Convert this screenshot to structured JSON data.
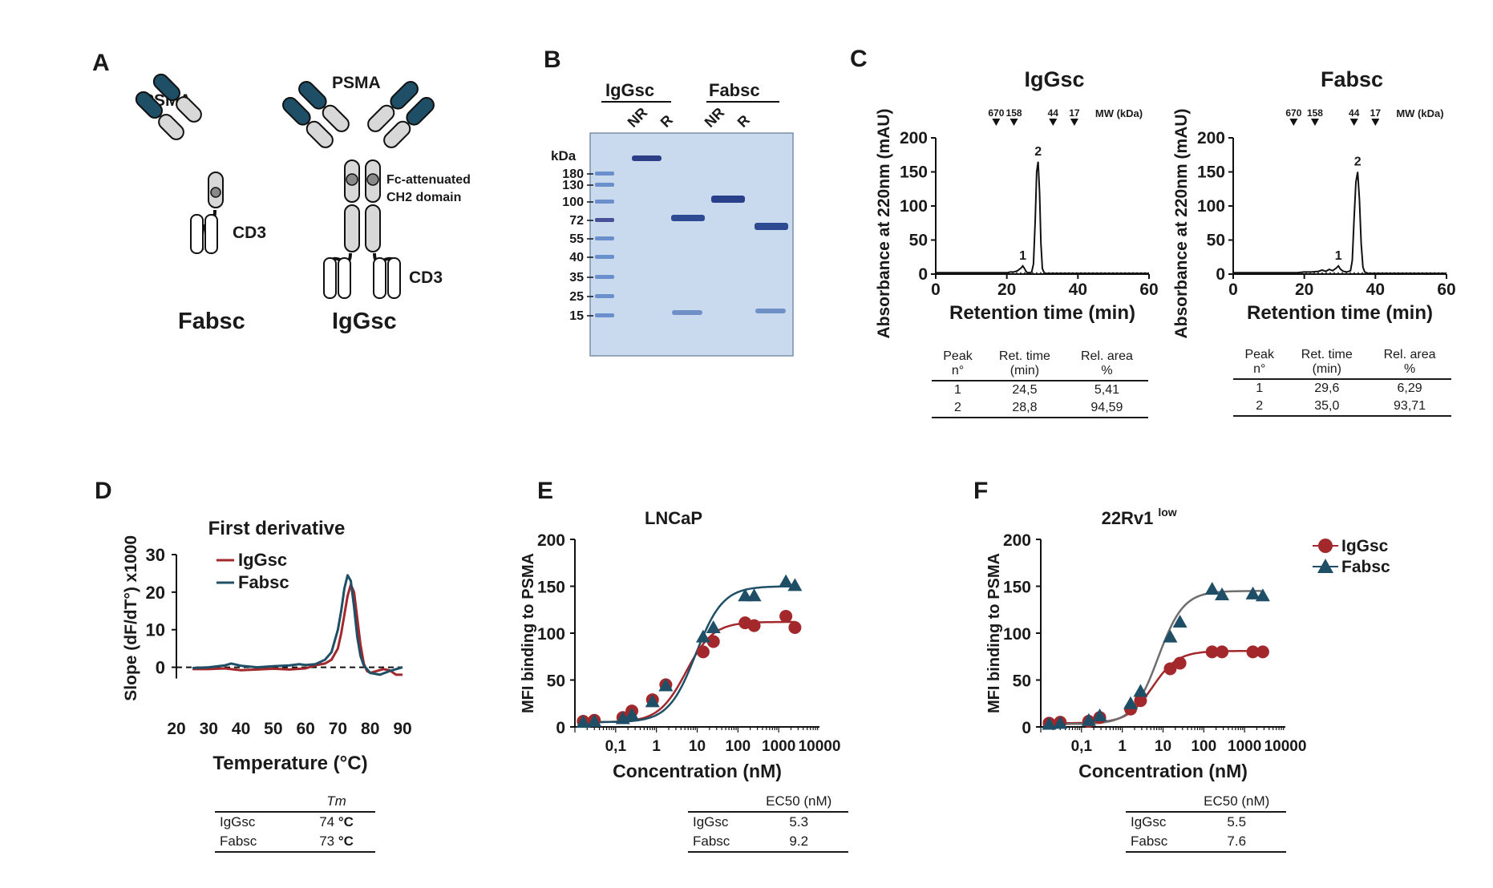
{
  "panel_labels": {
    "a": "A",
    "b": "B",
    "c": "C",
    "d": "D",
    "e": "E",
    "f": "F"
  },
  "colors": {
    "igg": "#a3282c",
    "fab": "#1e4f66",
    "fab_curve_f": "#6e6e6e",
    "gel": "#c6d8ee",
    "light_chain": "#d8d8d8",
    "variable": "#1e4f66"
  },
  "panel_a": {
    "fabsc": {
      "target": "PSMA",
      "effector": "CD3",
      "name": "Fabsc"
    },
    "iggsc": {
      "target": "PSMA",
      "effector": "CD3",
      "name": "IgGsc",
      "note_line1": "Fc-attenuated",
      "note_line2": "CH2 domain"
    }
  },
  "panel_b": {
    "group_labels": [
      "IgGsc",
      "Fabsc"
    ],
    "lane_labels": [
      "NR",
      "R",
      "NR",
      "R"
    ],
    "unit": "kDa",
    "markers": [
      "180",
      "130",
      "100",
      "72",
      "55",
      "40",
      "35",
      "25",
      "15"
    ]
  },
  "panel_c": {
    "mw_markers": [
      "670",
      "158",
      "44",
      "17"
    ],
    "mw_unit": "MW (kDa)",
    "table_headers": {
      "peak_1": "Peak",
      "peak_2": "n°",
      "rt_1": "Ret. time",
      "rt_2": "(min)",
      "area_1": "Rel. area",
      "area_2": "%"
    },
    "left_table": [
      {
        "peak": "1",
        "rt": "24,5",
        "area": "5,41"
      },
      {
        "peak": "2",
        "rt": "28,8",
        "area": "94,59"
      }
    ],
    "right_table": [
      {
        "peak": "1",
        "rt": "29,6",
        "area": "6,29"
      },
      {
        "peak": "2",
        "rt": "35,0",
        "area": "93,71"
      }
    ]
  },
  "panel_d": {
    "table_header": "Tm",
    "rows": [
      {
        "name": "IgGsc",
        "value": "74",
        "unit": "°C"
      },
      {
        "name": "Fabsc",
        "value": "73",
        "unit": "°C"
      }
    ]
  },
  "panel_e": {
    "table_header": "EC50  (nM)",
    "rows": [
      {
        "name": "IgGsc",
        "value": "5.3"
      },
      {
        "name": "Fabsc",
        "value": "9.2"
      }
    ]
  },
  "panel_f": {
    "title_main": "22Rv1",
    "title_sup": "low",
    "legend": [
      "IgGsc",
      "Fabsc"
    ],
    "table_header": "EC50  (nM)",
    "rows": [
      {
        "name": "IgGsc",
        "value": "5.5"
      },
      {
        "name": "Fabsc",
        "value": "7.6"
      }
    ]
  },
  "chart_data": [
    {
      "id": "c-left",
      "type": "line",
      "title": "IgGsc",
      "xlabel": "Retention time  (min)",
      "ylabel": "Absorbance at 220nm (mAU)",
      "xlim": [
        0,
        60
      ],
      "ylim": [
        0,
        200
      ],
      "xticks": [
        "0",
        "20",
        "40",
        "60"
      ],
      "yticks": [
        "0",
        "50",
        "100",
        "150",
        "200"
      ],
      "mw_positions": [
        17,
        22,
        33,
        39
      ],
      "peaks": [
        {
          "label": "1",
          "x": 24.5,
          "y": 12
        },
        {
          "label": "2",
          "x": 28.8,
          "y": 165
        }
      ],
      "x": [
        0,
        10,
        18,
        20,
        21,
        22,
        23,
        24,
        24.5,
        25,
        25.5,
        26,
        26.5,
        27,
        27.5,
        28,
        28.4,
        28.8,
        29.2,
        29.6,
        30,
        30.5,
        31,
        33,
        40,
        50,
        60
      ],
      "y": [
        2,
        2,
        2,
        2,
        3,
        3,
        5,
        9,
        12,
        8,
        3,
        2,
        2,
        3,
        15,
        80,
        150,
        165,
        120,
        45,
        8,
        2,
        1,
        1,
        1,
        1,
        1
      ]
    },
    {
      "id": "c-right",
      "type": "line",
      "title": "Fabsc",
      "xlabel": "Retention time  (min)",
      "ylabel": "Absorbance at 220nm (mAU)",
      "xlim": [
        0,
        60
      ],
      "ylim": [
        0,
        200
      ],
      "xticks": [
        "0",
        "20",
        "40",
        "60"
      ],
      "yticks": [
        "0",
        "50",
        "100",
        "150",
        "200"
      ],
      "mw_positions": [
        17,
        23,
        34,
        40
      ],
      "peaks": [
        {
          "label": "1",
          "x": 29.6,
          "y": 12
        },
        {
          "label": "2",
          "x": 35.0,
          "y": 150
        }
      ],
      "x": [
        0,
        10,
        18,
        20,
        22,
        24,
        25,
        26,
        27,
        28,
        29,
        29.6,
        30.2,
        31,
        32,
        33,
        33.5,
        34,
        34.5,
        35,
        35.5,
        36,
        36.5,
        37,
        37.5,
        38,
        40,
        50,
        60
      ],
      "y": [
        2,
        2,
        2,
        3,
        3,
        4,
        6,
        4,
        7,
        5,
        9,
        12,
        7,
        4,
        3,
        5,
        20,
        80,
        135,
        150,
        110,
        45,
        10,
        3,
        2,
        1,
        1,
        1,
        1
      ]
    },
    {
      "id": "d",
      "type": "line",
      "title": "First derivative",
      "xlabel": "Temperature  (°C)",
      "ylabel": "Slope (dF/dT°) x1000",
      "xlim": [
        20,
        90
      ],
      "ylim": [
        -5,
        30
      ],
      "xticks": [
        "20",
        "30",
        "40",
        "50",
        "60",
        "70",
        "80",
        "90"
      ],
      "yticks": [
        "0",
        "10",
        "20",
        "30"
      ],
      "baseline": 0,
      "series": [
        {
          "name": "IgGsc",
          "x": [
            25,
            30,
            35,
            40,
            45,
            50,
            55,
            60,
            63,
            66,
            68,
            70,
            71,
            72,
            73,
            74,
            75,
            76,
            77,
            78,
            79,
            80,
            82,
            84,
            86,
            88,
            90
          ],
          "y": [
            -0.5,
            -0.5,
            -0.3,
            -0.8,
            -0.6,
            -0.4,
            -0.6,
            -0.3,
            0.5,
            1,
            2,
            5,
            9,
            14,
            19,
            22,
            20,
            13,
            6,
            1,
            -1,
            -1.5,
            -1,
            -0.5,
            -0.8,
            -2,
            -2
          ]
        },
        {
          "name": "Fabsc",
          "x": [
            25,
            30,
            35,
            37,
            40,
            45,
            50,
            55,
            58,
            60,
            63,
            66,
            68,
            70,
            71,
            72,
            73,
            74,
            75,
            76,
            77,
            78,
            80,
            83,
            86,
            88,
            90
          ],
          "y": [
            -0.2,
            0,
            0.5,
            1,
            0.4,
            0,
            0.3,
            0.5,
            0.8,
            0.6,
            0.8,
            2,
            4,
            10,
            15,
            21,
            24.5,
            23,
            16,
            8,
            3,
            0.5,
            -1.5,
            -2,
            -1,
            -0.5,
            0
          ]
        }
      ]
    },
    {
      "id": "e",
      "type": "scatter",
      "title": "LNCaP",
      "xlabel": "Concentration (nM)",
      "ylabel": "MFI binding to PSMA",
      "xscale": "log",
      "xlim": [
        0.01,
        10000
      ],
      "ylim": [
        0,
        200
      ],
      "xticks": [
        "0,1",
        "1",
        "10",
        "100",
        "1000",
        "10000"
      ],
      "xtick_values": [
        0.1,
        1,
        10,
        100,
        1000,
        10000
      ],
      "yticks": [
        "0",
        "50",
        "100",
        "150",
        "200"
      ],
      "series": [
        {
          "name": "IgGsc",
          "marker": "circle",
          "x": [
            0.016,
            0.03,
            0.15,
            0.25,
            0.8,
            1.7,
            14,
            25,
            150,
            250,
            1500,
            2500
          ],
          "y": [
            6,
            7,
            10,
            17,
            29,
            45,
            80,
            91,
            111,
            108,
            118,
            106
          ],
          "fit": {
            "bottom": 5,
            "top": 112,
            "ec50": 5.3,
            "hill": 1.3
          }
        },
        {
          "name": "Fabsc",
          "marker": "triangle",
          "x": [
            0.016,
            0.03,
            0.15,
            0.25,
            0.8,
            1.7,
            14,
            25,
            150,
            250,
            1500,
            2500
          ],
          "y": [
            5,
            6,
            9,
            13,
            27,
            44,
            96,
            106,
            140,
            140,
            155,
            151
          ],
          "fit": {
            "bottom": 5,
            "top": 150,
            "ec50": 9.2,
            "hill": 1.3
          }
        }
      ]
    },
    {
      "id": "f",
      "type": "scatter",
      "title": "22Rv1low",
      "xlabel": "Concentration (nM)",
      "ylabel": "MFI binding to PSMA",
      "xscale": "log",
      "xlim": [
        0.01,
        10000
      ],
      "ylim": [
        0,
        200
      ],
      "xticks": [
        "0,1",
        "1",
        "10",
        "100",
        "1000",
        "10000"
      ],
      "xtick_values": [
        0.1,
        1,
        10,
        100,
        1000,
        10000
      ],
      "yticks": [
        "0",
        "50",
        "100",
        "150",
        "200"
      ],
      "legend": "top-right",
      "series": [
        {
          "name": "IgGsc",
          "marker": "circle",
          "x": [
            0.016,
            0.03,
            0.15,
            0.28,
            1.6,
            2.8,
            15,
            26,
            160,
            280,
            1600,
            2800
          ],
          "y": [
            4,
            5,
            6,
            10,
            19,
            28,
            62,
            68,
            80,
            80,
            80,
            80
          ],
          "fit": {
            "bottom": 4,
            "top": 81,
            "ec50": 5.5,
            "hill": 1.4
          }
        },
        {
          "name": "Fabsc",
          "marker": "triangle",
          "x": [
            0.016,
            0.03,
            0.15,
            0.28,
            1.6,
            2.8,
            15,
            26,
            160,
            280,
            1600,
            2800
          ],
          "y": [
            3,
            4,
            7,
            12,
            25,
            38,
            96,
            112,
            147,
            141,
            142,
            140
          ],
          "fit": {
            "bottom": 3,
            "top": 145,
            "ec50": 7.6,
            "hill": 1.4
          }
        }
      ]
    }
  ]
}
